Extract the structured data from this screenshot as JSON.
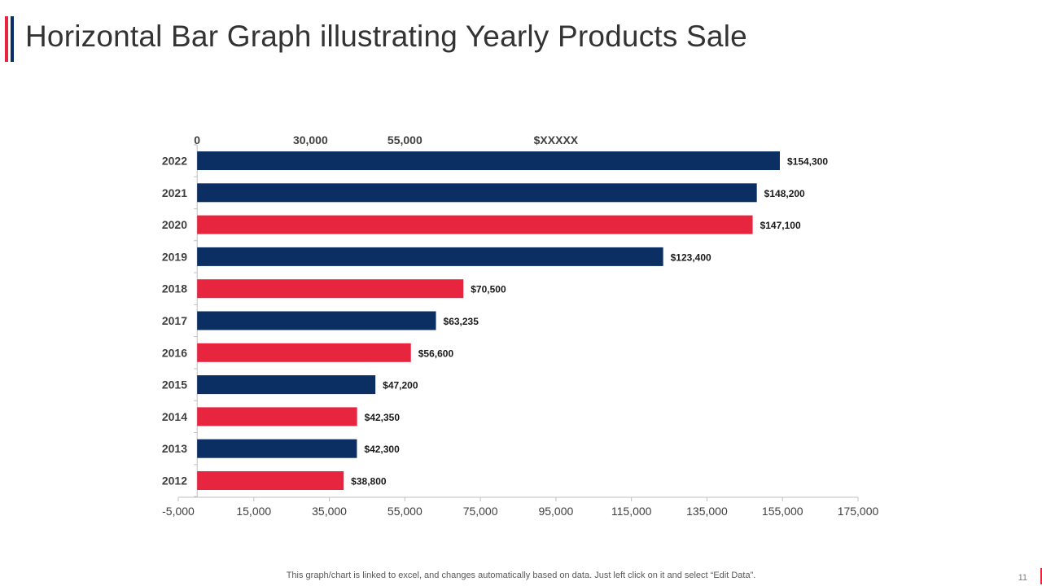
{
  "slide": {
    "title": "Horizontal Bar Graph illustrating Yearly Products Sale",
    "footnote": "This graph/chart is linked to excel,  and changes automatically based on data. Just left click on it and select “Edit Data”.",
    "page_number": "11"
  },
  "colors": {
    "navy": "#0b2f63",
    "red": "#e8253f",
    "axis": "#bfbfbf",
    "text": "#404040"
  },
  "chart_data": {
    "type": "bar",
    "orientation": "horizontal",
    "categories": [
      "2022",
      "2021",
      "2020",
      "2019",
      "2018",
      "2017",
      "2016",
      "2015",
      "2014",
      "2013",
      "2012"
    ],
    "values": [
      154300,
      148200,
      147100,
      123400,
      70500,
      63235,
      56600,
      47200,
      42350,
      42300,
      38800
    ],
    "data_labels": [
      "$154,300",
      "$148,200",
      "$147,100",
      "$123,400",
      "$70,500",
      "$63,235",
      "$56,600",
      "$47,200",
      "$42,350",
      "$42,300",
      "$38,800"
    ],
    "bar_colors": [
      "navy",
      "navy",
      "red",
      "navy",
      "red",
      "navy",
      "red",
      "navy",
      "red",
      "navy",
      "red"
    ],
    "xlim": [
      -5000,
      175000
    ],
    "x_ticks": [
      -5000,
      15000,
      35000,
      55000,
      75000,
      95000,
      115000,
      135000,
      155000,
      175000
    ],
    "x_tick_labels": [
      "-5,000",
      "15,000",
      "35,000",
      "55,000",
      "75,000",
      "95,000",
      "115,000",
      "135,000",
      "155,000",
      "175,000"
    ],
    "top_annotations": [
      {
        "text": "0",
        "x": 0
      },
      {
        "text": "30,000",
        "x": 30000
      },
      {
        "text": "55,000",
        "x": 55000
      },
      {
        "text": "$XXXXX",
        "x": 95000
      }
    ],
    "grid": false,
    "legend": "none",
    "title": "",
    "xlabel": "",
    "ylabel": ""
  }
}
